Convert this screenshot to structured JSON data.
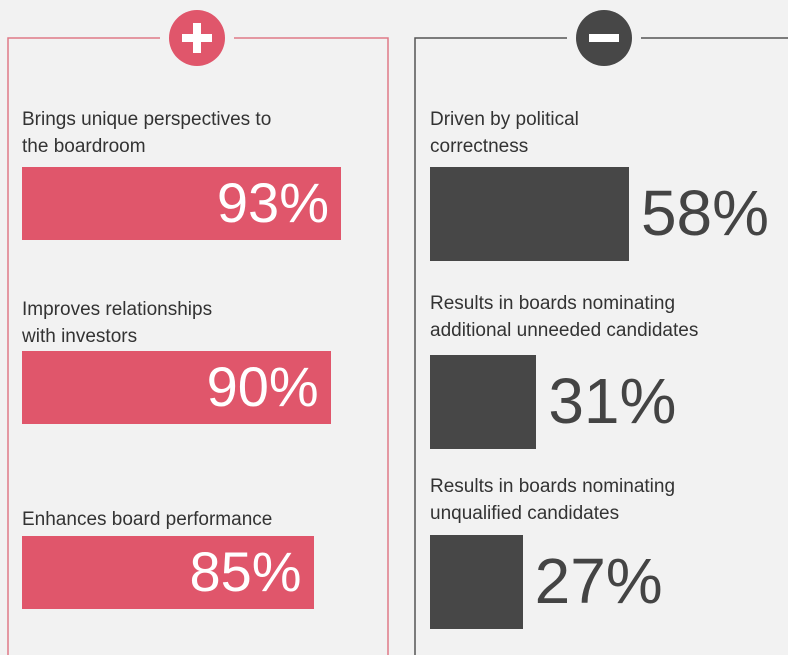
{
  "chart_data": [
    {
      "type": "bar",
      "color": "#e0566b",
      "categories": [
        "Brings unique perspectives to\nthe boardroom",
        "Improves relationships\nwith investors",
        "Enhances board performance"
      ],
      "values": [
        93,
        90,
        85
      ],
      "value_labels": [
        "93%",
        "90%",
        "85%"
      ]
    },
    {
      "type": "bar",
      "color": "#474747",
      "categories": [
        "Driven by political\ncorrectness",
        "Results in boards nominating\nadditional unneeded candidates",
        "Results in boards nominating\nunqualified candidates"
      ],
      "values": [
        58,
        31,
        27
      ],
      "value_labels": [
        "58%",
        "31%",
        "27%"
      ]
    }
  ]
}
